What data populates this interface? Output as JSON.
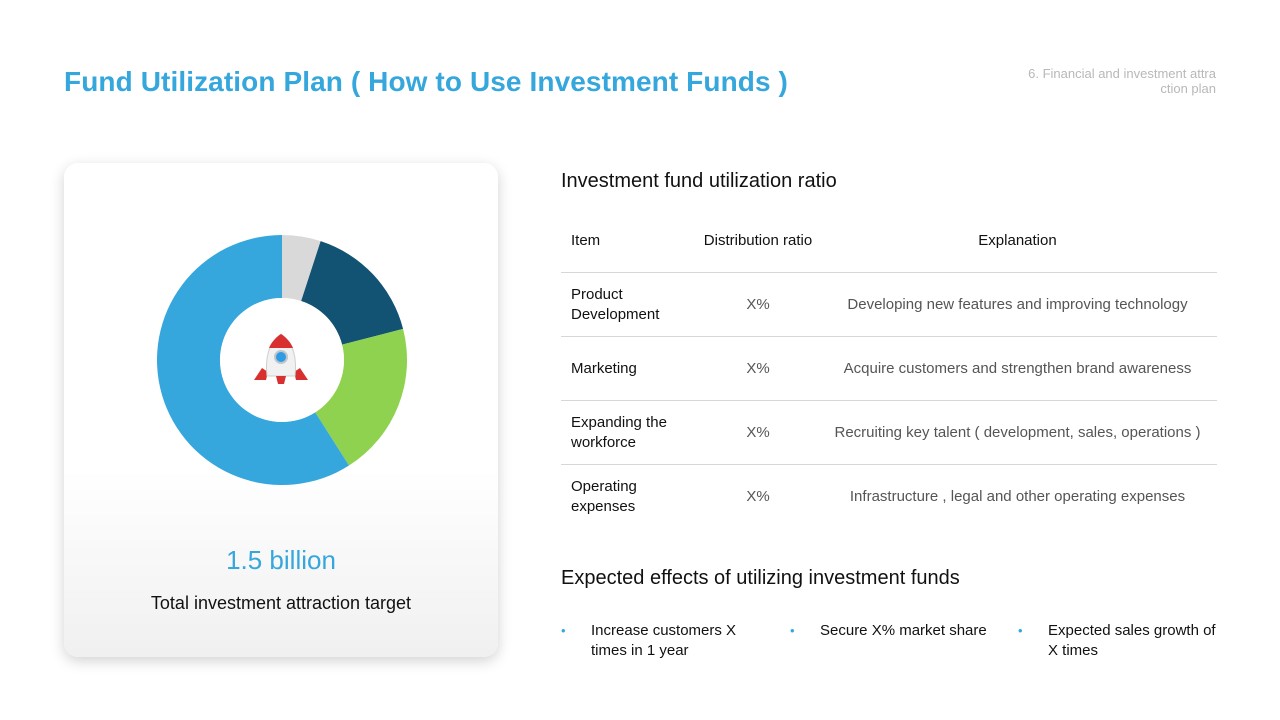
{
  "header": {
    "title": "Fund Utilization Plan ( How to Use Investment Funds )",
    "section_tag": "6. Financial and investment attraction plan"
  },
  "card": {
    "amount": "1.5 billion",
    "amount_label": "Total investment attraction target",
    "center_icon": "rocket-icon"
  },
  "chart_data": {
    "type": "pie",
    "donut": true,
    "values": [
      5,
      16,
      20,
      59
    ],
    "colors": [
      "#d9d9d9",
      "#125273",
      "#8ed24f",
      "#35a7dc"
    ]
  },
  "table": {
    "title": "Investment fund utilization ratio",
    "headers": [
      "Item",
      "Distribution ratio",
      "Explanation"
    ],
    "rows": [
      {
        "item": "Product Development",
        "ratio": "X%",
        "explanation": "Developing new features and improving technology"
      },
      {
        "item": "Marketing",
        "ratio": "X%",
        "explanation": "Acquire customers and strengthen brand awareness"
      },
      {
        "item": "Expanding the workforce",
        "ratio": "X%",
        "explanation": "Recruiting key talent ( development, sales, operations )"
      },
      {
        "item": "Operating expenses",
        "ratio": "X%",
        "explanation": "Infrastructure , legal and other operating expenses"
      }
    ]
  },
  "effects": {
    "title": "Expected effects of utilizing investment funds",
    "bullet": "•",
    "items": [
      "Increase customers X times in 1 year",
      "Secure X% market share",
      "Expected sales growth of X times"
    ]
  },
  "colors": {
    "accent": "#35a7dc",
    "dark_blue": "#125273",
    "green": "#8ed24f",
    "gray": "#d9d9d9"
  }
}
